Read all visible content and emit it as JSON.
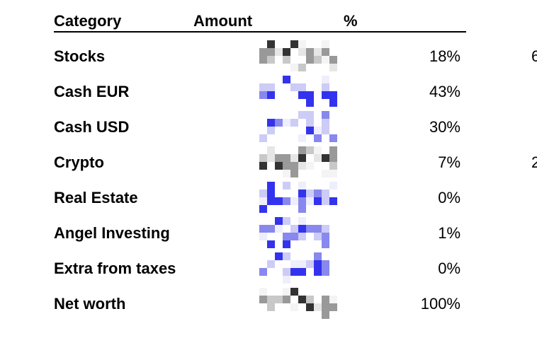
{
  "table": {
    "headers": {
      "category": "Category",
      "amount": "Amount",
      "percent": "%"
    },
    "rows": [
      {
        "category": "Stocks",
        "amount_hidden": true,
        "percent": "18%",
        "edge": "6",
        "tone": "gray"
      },
      {
        "category": "Cash EUR",
        "amount_hidden": true,
        "percent": "43%",
        "edge": "",
        "tone": "blue"
      },
      {
        "category": "Cash USD",
        "amount_hidden": true,
        "percent": "30%",
        "edge": "",
        "tone": "blue"
      },
      {
        "category": "Crypto",
        "amount_hidden": true,
        "percent": "7%",
        "edge": "2",
        "tone": "gray"
      },
      {
        "category": "Real Estate",
        "amount_hidden": true,
        "percent": "0%",
        "edge": "",
        "tone": "blue"
      },
      {
        "category": "Angel Investing",
        "amount_hidden": true,
        "percent": "1%",
        "edge": "",
        "tone": "blue"
      },
      {
        "category": "Extra from taxes",
        "amount_hidden": true,
        "percent": "0%",
        "edge": "",
        "tone": "blue"
      },
      {
        "category": "Net worth",
        "amount_hidden": true,
        "percent": "100%",
        "edge": "",
        "tone": "gray"
      }
    ]
  },
  "colors": {
    "pixel_blue_strong": "#3333ee",
    "pixel_blue_mid": "#8888ee",
    "pixel_blue_light": "#ccccf6",
    "pixel_gray_dark": "#333333",
    "pixel_gray_mid": "#999999",
    "pixel_gray_light": "#e6e6e6"
  }
}
